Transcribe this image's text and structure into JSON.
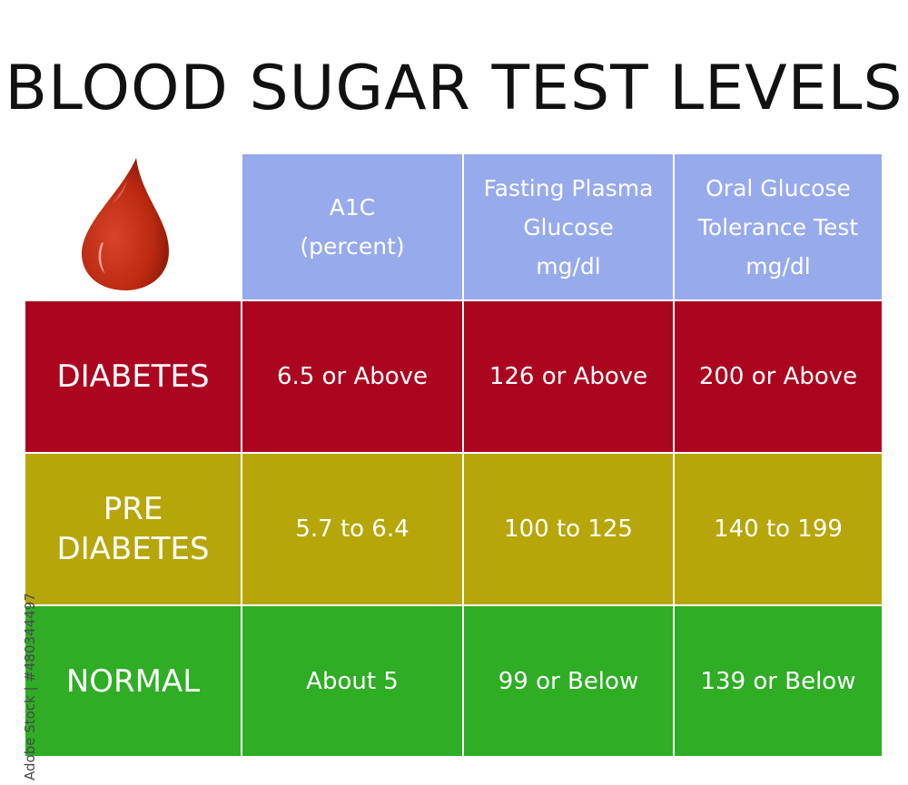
{
  "chart_data": {
    "type": "table",
    "title": "BLOOD SUGAR TEST LEVELS",
    "columns": [
      {
        "lines": [
          "A1C",
          "(percent)"
        ]
      },
      {
        "lines": [
          "Fasting Plasma",
          "Glucose",
          "mg/dl"
        ]
      },
      {
        "lines": [
          "Oral Glucose",
          "Tolerance Test",
          "mg/dl"
        ]
      }
    ],
    "rows": [
      {
        "label_lines": [
          "DIABETES"
        ],
        "color": "#ab0520",
        "values": [
          "6.5 or Above",
          "126 or Above",
          "200 or Above"
        ]
      },
      {
        "label_lines": [
          "PRE",
          "DIABETES"
        ],
        "color": "#b7a60a",
        "values": [
          "5.7 to 6.4",
          "100 to 125",
          "140 to 199"
        ]
      },
      {
        "label_lines": [
          "NORMAL"
        ],
        "color": "#2ead25",
        "values": [
          "About 5",
          "99 or Below",
          "139 or Below"
        ]
      }
    ],
    "header_color": "#97aaec",
    "drop_icon": "blood-drop-icon",
    "drop_color": "#b8280f"
  },
  "watermark": "Adobe Stock | #480344497"
}
